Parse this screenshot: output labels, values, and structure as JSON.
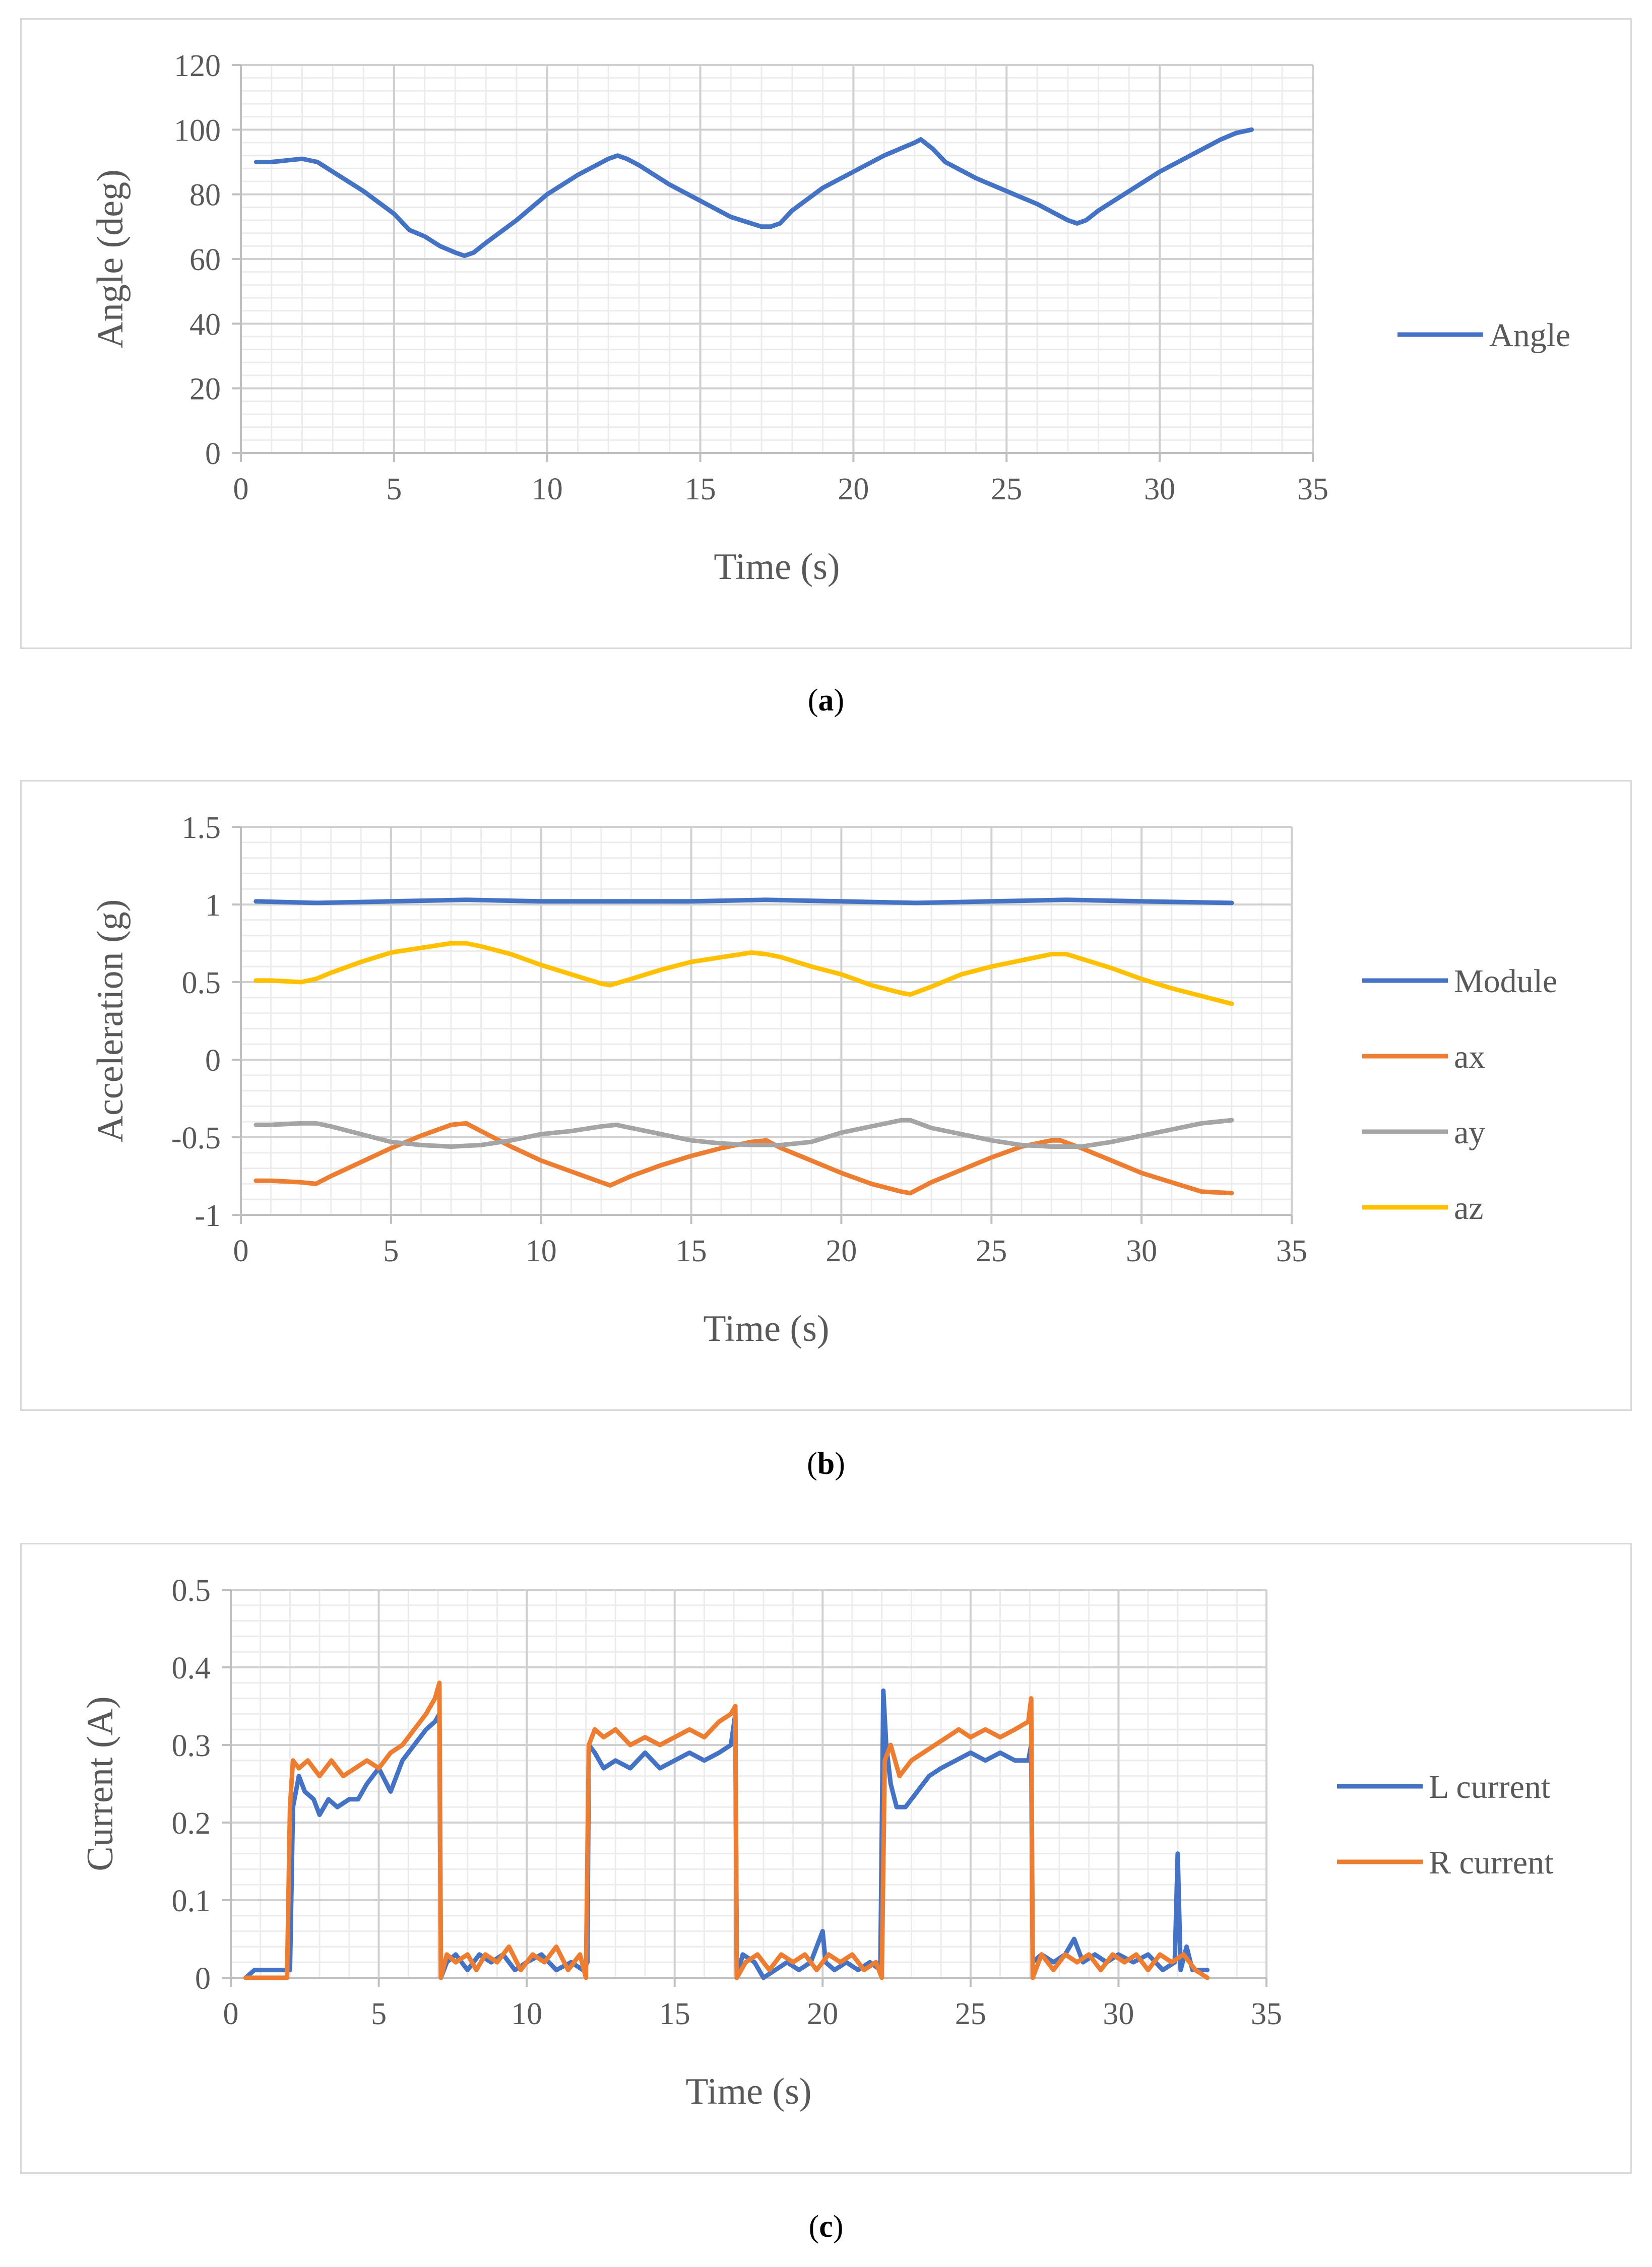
{
  "colors": {
    "blue": "#4472c4",
    "orange": "#ed7d31",
    "gray": "#a5a5a5",
    "yellow": "#ffc000",
    "gridMajor": "#d0d0d0",
    "gridMinor": "#ececec",
    "axis": "#bfbfbf"
  },
  "chart_data": [
    {
      "type": "line",
      "caption_pre": "(",
      "caption_letter": "a",
      "caption_post": ")",
      "xlabel": "Time (s)",
      "ylabel": "Angle (deg)",
      "xlim": [
        0,
        35
      ],
      "ylim": [
        0,
        120
      ],
      "xticks": [
        0,
        5,
        10,
        15,
        20,
        25,
        30,
        35
      ],
      "yticks": [
        0,
        20,
        40,
        60,
        80,
        100,
        120
      ],
      "legend_position": "right",
      "grid": true,
      "series": [
        {
          "name": "Angle",
          "color": "#4472c4",
          "x": [
            0.5,
            1.0,
            1.5,
            2.0,
            2.5,
            3.0,
            4.0,
            5.0,
            5.5,
            6.0,
            6.5,
            7.0,
            7.3,
            7.6,
            8.0,
            9.0,
            10.0,
            11.0,
            12.0,
            12.3,
            12.6,
            13.0,
            14.0,
            15.0,
            16.0,
            17.0,
            17.3,
            17.6,
            18.0,
            19.0,
            20.0,
            21.0,
            22.0,
            22.2,
            22.6,
            23.0,
            24.0,
            25.0,
            26.0,
            27.0,
            27.3,
            27.6,
            28.0,
            29.0,
            30.0,
            31.0,
            32.0,
            32.5,
            33.0
          ],
          "y": [
            90,
            90,
            90.5,
            91,
            90,
            87,
            81,
            74,
            69,
            67,
            64,
            62,
            61,
            62,
            65,
            72,
            80,
            86,
            91,
            92,
            91,
            89,
            83,
            78,
            73,
            70,
            70,
            71,
            75,
            82,
            87,
            92,
            96,
            97,
            94,
            90,
            85,
            81,
            77,
            72,
            71,
            72,
            75,
            81,
            87,
            92,
            97,
            99,
            100
          ]
        }
      ]
    },
    {
      "type": "line",
      "caption_pre": "(",
      "caption_letter": "b",
      "caption_post": ")",
      "xlabel": "Time (s)",
      "ylabel": "Acceleration (g)",
      "xlim": [
        0,
        35
      ],
      "ylim": [
        -1,
        1.5
      ],
      "xticks": [
        0,
        5,
        10,
        15,
        20,
        25,
        30,
        35
      ],
      "yticks": [
        -1,
        -0.5,
        0,
        0.5,
        1,
        1.5
      ],
      "ytick_labels": [
        "-1",
        "-0.5",
        "0",
        "0.5",
        "1",
        "1.5"
      ],
      "legend_position": "right",
      "grid": true,
      "series": [
        {
          "name": "Module",
          "color": "#4472c4",
          "x": [
            0.5,
            2.5,
            5,
            7.5,
            10,
            12.5,
            15,
            17.5,
            20,
            22.5,
            25,
            27.5,
            30,
            33
          ],
          "y": [
            1.02,
            1.01,
            1.02,
            1.03,
            1.02,
            1.02,
            1.02,
            1.03,
            1.02,
            1.01,
            1.02,
            1.03,
            1.02,
            1.01
          ]
        },
        {
          "name": "ax",
          "color": "#ed7d31",
          "x": [
            0.5,
            1,
            2,
            2.5,
            3,
            4,
            5,
            6,
            7,
            7.5,
            8,
            9,
            10,
            11,
            12,
            12.3,
            13,
            14,
            15,
            16,
            17,
            17.5,
            18,
            19,
            20,
            21,
            22,
            22.3,
            23,
            24,
            25,
            26,
            27,
            27.3,
            28,
            29,
            30,
            31,
            32,
            33
          ],
          "y": [
            -0.78,
            -0.78,
            -0.79,
            -0.8,
            -0.75,
            -0.66,
            -0.57,
            -0.49,
            -0.42,
            -0.41,
            -0.46,
            -0.56,
            -0.65,
            -0.72,
            -0.79,
            -0.81,
            -0.75,
            -0.68,
            -0.62,
            -0.57,
            -0.53,
            -0.52,
            -0.57,
            -0.65,
            -0.73,
            -0.8,
            -0.85,
            -0.86,
            -0.79,
            -0.71,
            -0.63,
            -0.56,
            -0.52,
            -0.52,
            -0.57,
            -0.65,
            -0.73,
            -0.79,
            -0.85,
            -0.86
          ]
        },
        {
          "name": "ay",
          "color": "#a5a5a5",
          "x": [
            0.5,
            1,
            2,
            2.5,
            3,
            4,
            5,
            6,
            7,
            8,
            9,
            10,
            11,
            12,
            12.5,
            13,
            14,
            15,
            16,
            17,
            18,
            19,
            20,
            21,
            22,
            22.3,
            23,
            24,
            25,
            26,
            27,
            28,
            29,
            30,
            31,
            32,
            33
          ],
          "y": [
            -0.42,
            -0.42,
            -0.41,
            -0.41,
            -0.43,
            -0.48,
            -0.53,
            -0.55,
            -0.56,
            -0.55,
            -0.52,
            -0.48,
            -0.46,
            -0.43,
            -0.42,
            -0.44,
            -0.48,
            -0.52,
            -0.54,
            -0.55,
            -0.55,
            -0.53,
            -0.47,
            -0.43,
            -0.39,
            -0.39,
            -0.44,
            -0.48,
            -0.52,
            -0.55,
            -0.56,
            -0.56,
            -0.53,
            -0.49,
            -0.45,
            -0.41,
            -0.39
          ]
        },
        {
          "name": "az",
          "color": "#ffc000",
          "x": [
            0.5,
            1,
            2,
            2.5,
            3,
            4,
            5,
            6,
            7,
            7.5,
            8,
            9,
            10,
            11,
            12,
            12.3,
            13,
            14,
            15,
            16,
            17,
            17.5,
            18,
            19,
            20,
            21,
            22,
            22.3,
            23,
            24,
            25,
            26,
            27,
            27.5,
            28,
            29,
            30,
            31,
            32,
            33
          ],
          "y": [
            0.51,
            0.51,
            0.5,
            0.52,
            0.56,
            0.63,
            0.69,
            0.72,
            0.75,
            0.75,
            0.73,
            0.68,
            0.61,
            0.55,
            0.49,
            0.48,
            0.52,
            0.58,
            0.63,
            0.66,
            0.69,
            0.68,
            0.66,
            0.6,
            0.55,
            0.48,
            0.43,
            0.42,
            0.47,
            0.55,
            0.6,
            0.64,
            0.68,
            0.68,
            0.65,
            0.59,
            0.52,
            0.46,
            0.41,
            0.36
          ]
        }
      ]
    },
    {
      "type": "line",
      "caption_pre": "(",
      "caption_letter": "c",
      "caption_post": ")",
      "xlabel": "Time (s)",
      "ylabel": "Current (A)",
      "xlim": [
        0,
        35
      ],
      "ylim": [
        0,
        0.5
      ],
      "xticks": [
        0,
        5,
        10,
        15,
        20,
        25,
        30,
        35
      ],
      "yticks": [
        0,
        0.1,
        0.2,
        0.3,
        0.4,
        0.5
      ],
      "legend_position": "right",
      "grid": true,
      "series": [
        {
          "name": "L current",
          "color": "#4472c4",
          "x": [
            0.5,
            0.8,
            0.9,
            1.8,
            2.0,
            2.1,
            2.3,
            2.5,
            2.8,
            3.0,
            3.3,
            3.6,
            4.0,
            4.3,
            4.6,
            5.0,
            5.4,
            5.8,
            6.2,
            6.6,
            6.9,
            7.05,
            7.1,
            7.3,
            7.6,
            8.0,
            8.4,
            8.8,
            9.2,
            9.6,
            10,
            10.5,
            11,
            11.5,
            11.9,
            12.05,
            12.1,
            12.3,
            12.6,
            13,
            13.5,
            14,
            14.5,
            15,
            15.5,
            16,
            16.5,
            16.9,
            17.05,
            17.1,
            17.3,
            17.7,
            18,
            18.4,
            18.8,
            19.2,
            19.6,
            20.0,
            20.1,
            20.4,
            20.8,
            21.2,
            21.6,
            21.95,
            22.05,
            22.15,
            22.3,
            22.5,
            22.8,
            23.2,
            23.6,
            24,
            24.5,
            25,
            25.5,
            26,
            26.5,
            26.95,
            27.05,
            27.1,
            27.4,
            27.8,
            28.2,
            28.5,
            28.8,
            29.2,
            29.6,
            30,
            30.5,
            31,
            31.5,
            31.9,
            32.0,
            32.1,
            32.3,
            32.5,
            32.7,
            33.0
          ],
          "y": [
            0,
            0.01,
            0.01,
            0.01,
            0.01,
            0.22,
            0.26,
            0.24,
            0.23,
            0.21,
            0.23,
            0.22,
            0.23,
            0.23,
            0.25,
            0.27,
            0.24,
            0.28,
            0.3,
            0.32,
            0.33,
            0.34,
            0.0,
            0.02,
            0.03,
            0.01,
            0.03,
            0.02,
            0.03,
            0.01,
            0.02,
            0.03,
            0.01,
            0.02,
            0.01,
            0.02,
            0.3,
            0.29,
            0.27,
            0.28,
            0.27,
            0.29,
            0.27,
            0.28,
            0.29,
            0.28,
            0.29,
            0.3,
            0.34,
            0.0,
            0.03,
            0.02,
            0.0,
            0.01,
            0.02,
            0.01,
            0.02,
            0.06,
            0.02,
            0.01,
            0.02,
            0.01,
            0.02,
            0.01,
            0.37,
            0.3,
            0.25,
            0.22,
            0.22,
            0.24,
            0.26,
            0.27,
            0.28,
            0.29,
            0.28,
            0.29,
            0.28,
            0.28,
            0.3,
            0.02,
            0.03,
            0.02,
            0.03,
            0.05,
            0.02,
            0.03,
            0.02,
            0.03,
            0.02,
            0.03,
            0.01,
            0.02,
            0.16,
            0.01,
            0.04,
            0.01,
            0.01,
            0.01
          ]
        },
        {
          "name": "R current",
          "color": "#ed7d31",
          "x": [
            0.5,
            1.0,
            1.5,
            1.9,
            2.0,
            2.1,
            2.3,
            2.6,
            3.0,
            3.4,
            3.8,
            4.2,
            4.6,
            5.0,
            5.4,
            5.8,
            6.2,
            6.6,
            6.9,
            7.05,
            7.1,
            7.3,
            7.6,
            8.0,
            8.3,
            8.6,
            9.0,
            9.4,
            9.8,
            10.2,
            10.6,
            11.0,
            11.4,
            11.8,
            12.0,
            12.1,
            12.3,
            12.6,
            13,
            13.5,
            14,
            14.5,
            15,
            15.5,
            16,
            16.5,
            16.9,
            17.05,
            17.1,
            17.4,
            17.8,
            18.2,
            18.6,
            19.0,
            19.4,
            19.8,
            20.2,
            20.6,
            21.0,
            21.4,
            21.8,
            22.0,
            22.1,
            22.3,
            22.6,
            23.0,
            23.4,
            23.8,
            24.2,
            24.6,
            25,
            25.5,
            26,
            26.5,
            26.95,
            27.05,
            27.1,
            27.4,
            27.8,
            28.2,
            28.6,
            29,
            29.4,
            29.8,
            30.2,
            30.6,
            31,
            31.4,
            31.8,
            32.2,
            32.6,
            33.0
          ],
          "y": [
            0,
            0,
            0,
            0,
            0.22,
            0.28,
            0.27,
            0.28,
            0.26,
            0.28,
            0.26,
            0.27,
            0.28,
            0.27,
            0.29,
            0.3,
            0.32,
            0.34,
            0.36,
            0.38,
            0.0,
            0.03,
            0.02,
            0.03,
            0.01,
            0.03,
            0.02,
            0.04,
            0.01,
            0.03,
            0.02,
            0.04,
            0.01,
            0.03,
            0.0,
            0.3,
            0.32,
            0.31,
            0.32,
            0.3,
            0.31,
            0.3,
            0.31,
            0.32,
            0.31,
            0.33,
            0.34,
            0.35,
            0.0,
            0.02,
            0.03,
            0.01,
            0.03,
            0.02,
            0.03,
            0.01,
            0.03,
            0.02,
            0.03,
            0.01,
            0.02,
            0.0,
            0.28,
            0.3,
            0.26,
            0.28,
            0.29,
            0.3,
            0.31,
            0.32,
            0.31,
            0.32,
            0.31,
            0.32,
            0.33,
            0.36,
            0.0,
            0.03,
            0.01,
            0.03,
            0.02,
            0.03,
            0.01,
            0.03,
            0.02,
            0.03,
            0.01,
            0.03,
            0.02,
            0.03,
            0.01,
            0.0
          ]
        }
      ]
    }
  ]
}
